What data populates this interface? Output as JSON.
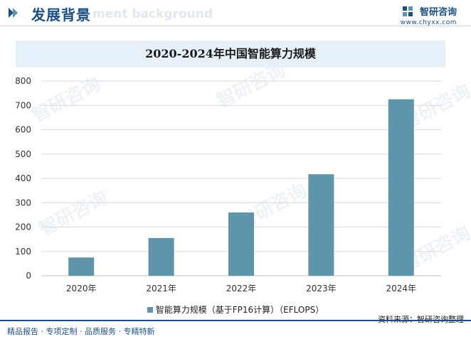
{
  "header": {
    "title": "发展背景",
    "ghost_text": "ment background",
    "brand_name": "智研咨询",
    "brand_url": "www.chyxx.com"
  },
  "watermark_text": "智研咨询",
  "chart_data": {
    "type": "bar",
    "title": "2020-2024年中国智能算力规模",
    "categories": [
      "2020年",
      "2021年",
      "2022年",
      "2023年",
      "2024年"
    ],
    "series": [
      {
        "name": "智能算力规模（基于FP16计算）（EFLOPS）",
        "values": [
          75,
          155,
          260,
          417,
          725
        ],
        "color": "#5f95aa"
      }
    ],
    "ylim": [
      0,
      800
    ],
    "yticks": [
      0,
      100,
      200,
      300,
      400,
      500,
      600,
      700,
      800
    ],
    "grid": true,
    "legend_position": "bottom"
  },
  "footer": {
    "source": "资料来源：智研咨询整理",
    "services": "精品报告 · 专项定制 · 品质服务 · 专精特新"
  }
}
